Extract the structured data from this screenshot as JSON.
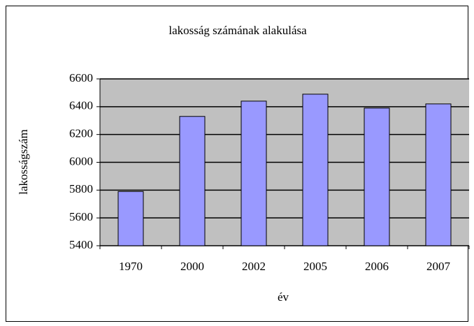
{
  "chart_data": {
    "type": "bar",
    "title": "lakosság számának alakulása",
    "x_label": "év",
    "y_label": "lakosságszám",
    "categories": [
      "1970",
      "2000",
      "2002",
      "2005",
      "2006",
      "2007"
    ],
    "values": [
      5790,
      6330,
      6440,
      6490,
      6390,
      6420
    ],
    "color": "#9999ff",
    "plot_background": "#c0c0c0",
    "ylim": [
      5400,
      6600
    ],
    "yticks": [
      5400,
      5600,
      5800,
      6000,
      6200,
      6400,
      6600
    ],
    "grid": true
  }
}
